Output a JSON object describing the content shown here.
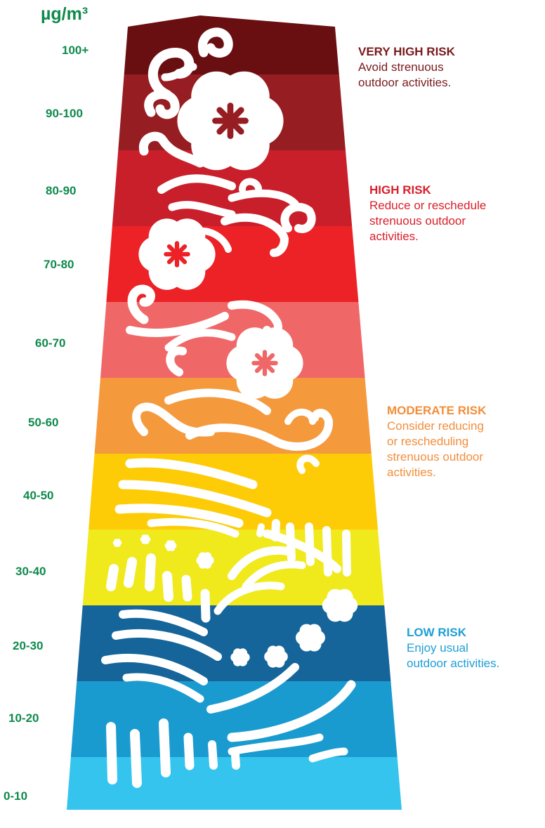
{
  "unit_label": "µg/m³",
  "levels": [
    "100+",
    "90-100",
    "80-90",
    "70-80",
    "60-70",
    "50-60",
    "40-50",
    "30-40",
    "20-30",
    "10-20",
    "0-10"
  ],
  "band_colors": [
    "#6a0f11",
    "#961d22",
    "#c91f2b",
    "#ec2227",
    "#f06768",
    "#f5993d",
    "#fdcc07",
    "#f0e91b",
    "#15659a",
    "#1a9bd0",
    "#34c4ee"
  ],
  "risks": [
    {
      "title": "VERY HIGH RISK",
      "text": "Avoid strenuous\n outdoor activities.",
      "color": "#7a1a1d"
    },
    {
      "title": "HIGH RISK",
      "text": "Reduce or reschedule\n strenuous outdoor\n activities.",
      "color": "#d91f2b"
    },
    {
      "title": "MODERATE RISK",
      "text": "Consider reducing\n or rescheduling\n strenuous outdoor\n activities.",
      "color": "#f28e3b"
    },
    {
      "title": "LOW RISK",
      "text": "Enjoy usual\noutdoor activities.",
      "color": "#1d9fd6"
    }
  ]
}
